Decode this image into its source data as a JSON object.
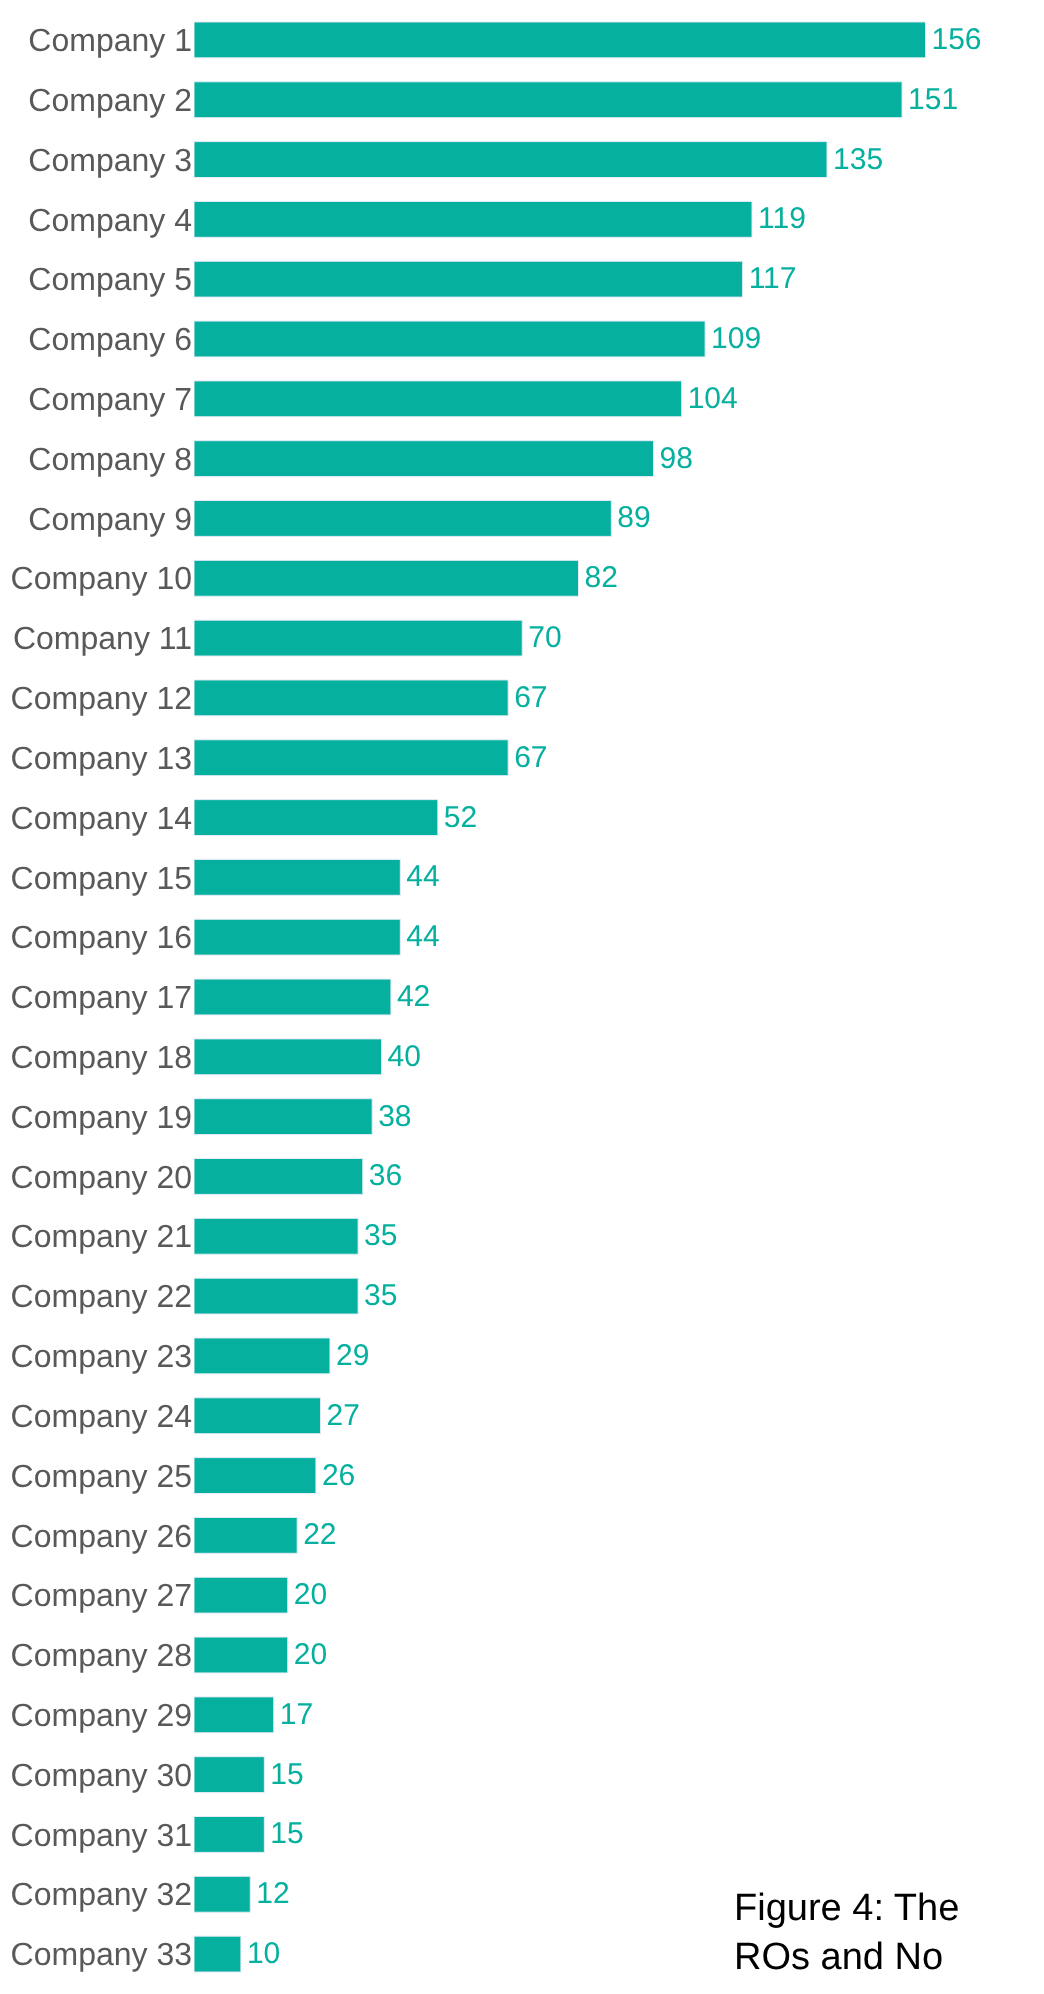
{
  "chart_data": {
    "type": "bar",
    "orientation": "horizontal",
    "categories": [
      "Company 1",
      "Company 2",
      "Company 3",
      "Company 4",
      "Company 5",
      "Company 6",
      "Company 7",
      "Company 8",
      "Company 9",
      "Company 10",
      "Company 11",
      "Company 12",
      "Company 13",
      "Company 14",
      "Company 15",
      "Company 16",
      "Company 17",
      "Company 18",
      "Company 19",
      "Company 20",
      "Company 21",
      "Company 22",
      "Company 23",
      "Company 24",
      "Company 25",
      "Company 26",
      "Company 27",
      "Company 28",
      "Company 29",
      "Company 30",
      "Company 31",
      "Company 32",
      "Company 33"
    ],
    "values": [
      156,
      151,
      135,
      119,
      117,
      109,
      104,
      98,
      89,
      82,
      70,
      67,
      67,
      52,
      44,
      44,
      42,
      40,
      38,
      36,
      35,
      35,
      29,
      27,
      26,
      22,
      20,
      20,
      17,
      15,
      15,
      12,
      10
    ],
    "color": "#05b09f",
    "data_labels": true,
    "annotations": [
      "Figure 4: The\nROs and No"
    ]
  }
}
